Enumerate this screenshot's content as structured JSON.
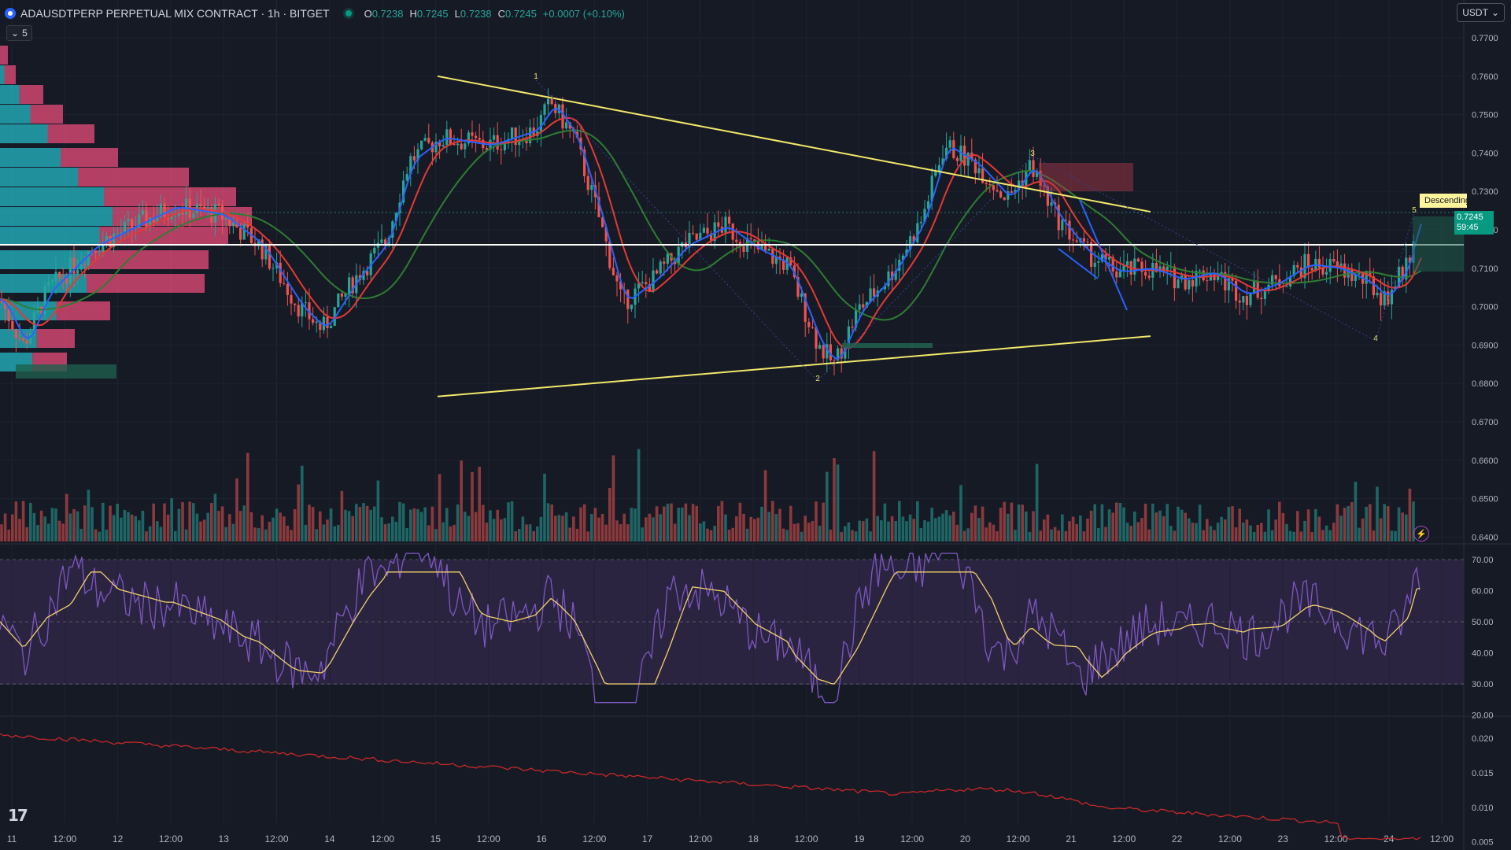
{
  "header": {
    "symbol": "ADAUSDTPERP PERPETUAL MIX CONTRACT · 1h · BITGET",
    "ohlc": [
      {
        "k": "O",
        "v": "0.7238"
      },
      {
        "k": "H",
        "v": "0.7245"
      },
      {
        "k": "L",
        "v": "0.7238"
      },
      {
        "k": "C",
        "v": "0.7245"
      }
    ],
    "change": "+0.0007 (+0.10%)",
    "indicator_count": "5",
    "currency": "USDT"
  },
  "price_axis": {
    "labels": [
      "0.7700",
      "0.7600",
      "0.7500",
      "0.7400",
      "0.7300",
      "0.7200",
      "0.7100",
      "0.7000",
      "0.6900",
      "0.6800",
      "0.6700",
      "0.6600",
      "0.6500",
      "0.6400"
    ],
    "current_price": "0.7245",
    "countdown": "59:45"
  },
  "rsi_axis": {
    "labels": [
      "70.00",
      "60.00",
      "50.00",
      "40.00",
      "30.00",
      "20.00"
    ]
  },
  "osc_axis": {
    "labels": [
      "0.020",
      "0.015",
      "0.010",
      "0.005"
    ]
  },
  "time_axis": {
    "labels": [
      "11",
      "12:00",
      "12",
      "12:00",
      "13",
      "12:00",
      "14",
      "12:00",
      "15",
      "12:00",
      "16",
      "12:00",
      "17",
      "12:00",
      "18",
      "12:00",
      "19",
      "12:00",
      "20",
      "12:00",
      "21",
      "12:00",
      "22",
      "12:00",
      "23",
      "12:00",
      "24",
      "12:00"
    ]
  },
  "pattern": {
    "label": "Descending Triangle",
    "points": [
      "1",
      "2",
      "3",
      "4",
      "5"
    ]
  },
  "colors": {
    "bg": "#161a25",
    "up": "#26a69a",
    "down": "#ef5350",
    "ema_fast": "#2962ff",
    "ema_mid": "#e53935",
    "ema_slow": "#2e7d32",
    "pattern": "#f3e86a",
    "rsi": "#7e57c2",
    "rsi_ma": "#f3d16a"
  },
  "chart_data": {
    "type": "candlestick",
    "price_range": [
      0.639,
      0.773
    ],
    "pattern_lines": [
      {
        "name": "upper",
        "from": {
          "t": 556,
          "p": 0.76
        },
        "to": {
          "t": 1462,
          "p": 0.7247
        }
      },
      {
        "name": "lower",
        "from": {
          "t": 556,
          "p": 0.6766
        },
        "to": {
          "t": 1462,
          "p": 0.6923
        }
      }
    ],
    "horizontal_level": 0.7161,
    "rsi_range": [
      20,
      75
    ],
    "rsi_bands": [
      30,
      50,
      70
    ],
    "osc_range": [
      0.004,
      0.022
    ]
  },
  "icons": {
    "logo": "tradingview-logo-icon",
    "flash": "flash-icon",
    "coin": "cardano-coin-icon"
  }
}
